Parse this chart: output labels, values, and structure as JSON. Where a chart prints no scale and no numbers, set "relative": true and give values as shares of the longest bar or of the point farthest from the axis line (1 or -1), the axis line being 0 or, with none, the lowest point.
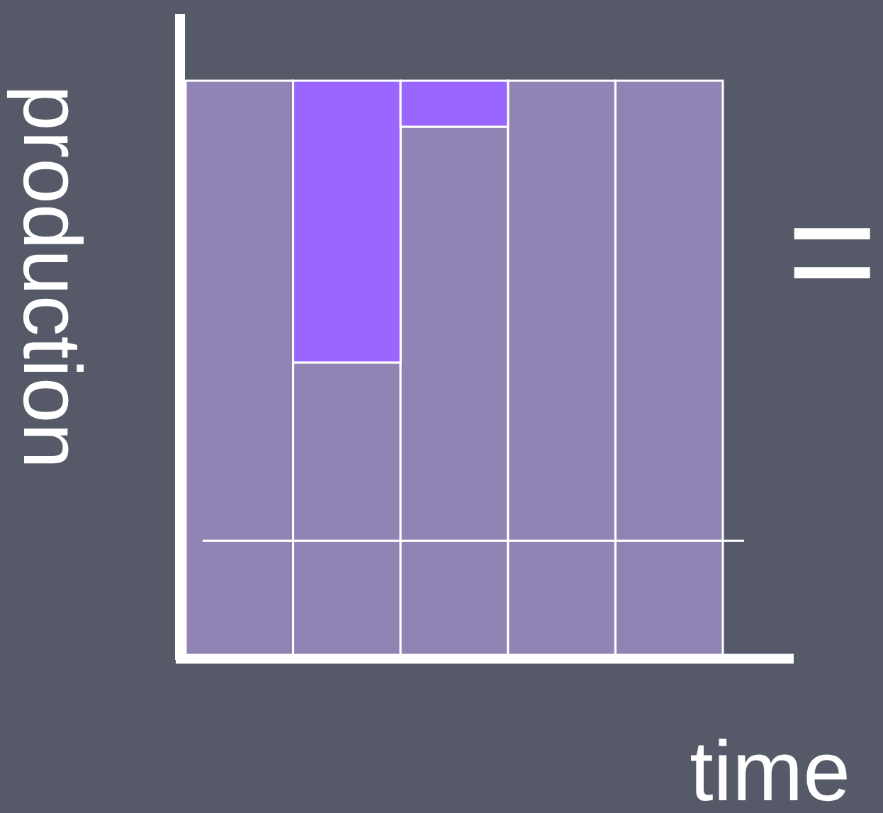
{
  "chart_data": {
    "type": "bar",
    "relative": true,
    "stacked": true,
    "xlabel": "time",
    "ylabel": "production",
    "annotations": [
      "="
    ],
    "categories": [
      null,
      null,
      null,
      null,
      null
    ],
    "series": [
      {
        "color": "#9283b5",
        "values": [
          1,
          0.51,
          0.92,
          1,
          1
        ]
      },
      {
        "color": "#9966ff",
        "values": [
          null,
          0.49,
          0.08,
          null,
          null
        ]
      }
    ],
    "ref_lines": [
      {
        "axis": "y",
        "value": 0.2,
        "color": "#ffffff"
      }
    ]
  }
}
